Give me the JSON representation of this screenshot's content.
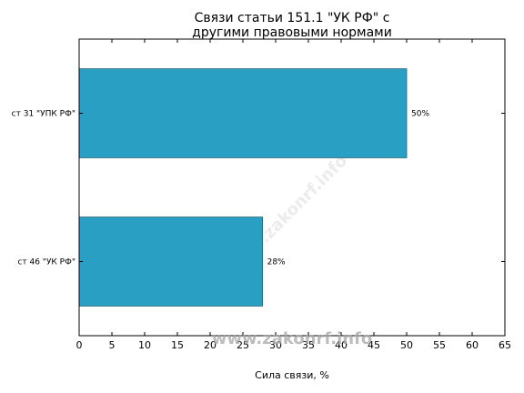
{
  "chart_data": {
    "type": "bar",
    "orientation": "horizontal",
    "title": "Связи статьи 151.1 \"УК РФ\" с\nдругими правовыми нормами",
    "xlabel": "Сила связи, %",
    "ylabel": "",
    "xlim": [
      0,
      65
    ],
    "x_ticks": [
      0,
      5,
      10,
      15,
      20,
      25,
      30,
      35,
      40,
      45,
      50,
      55,
      60,
      65
    ],
    "categories": [
      "ст 31 \"УПК РФ\"",
      "ст 46 \"УК РФ\""
    ],
    "values": [
      50,
      28
    ],
    "data_labels": [
      "50%",
      "28%"
    ],
    "bar_color": "#2a9fc4",
    "grid": false
  },
  "watermark": "www.zakonrf.info"
}
